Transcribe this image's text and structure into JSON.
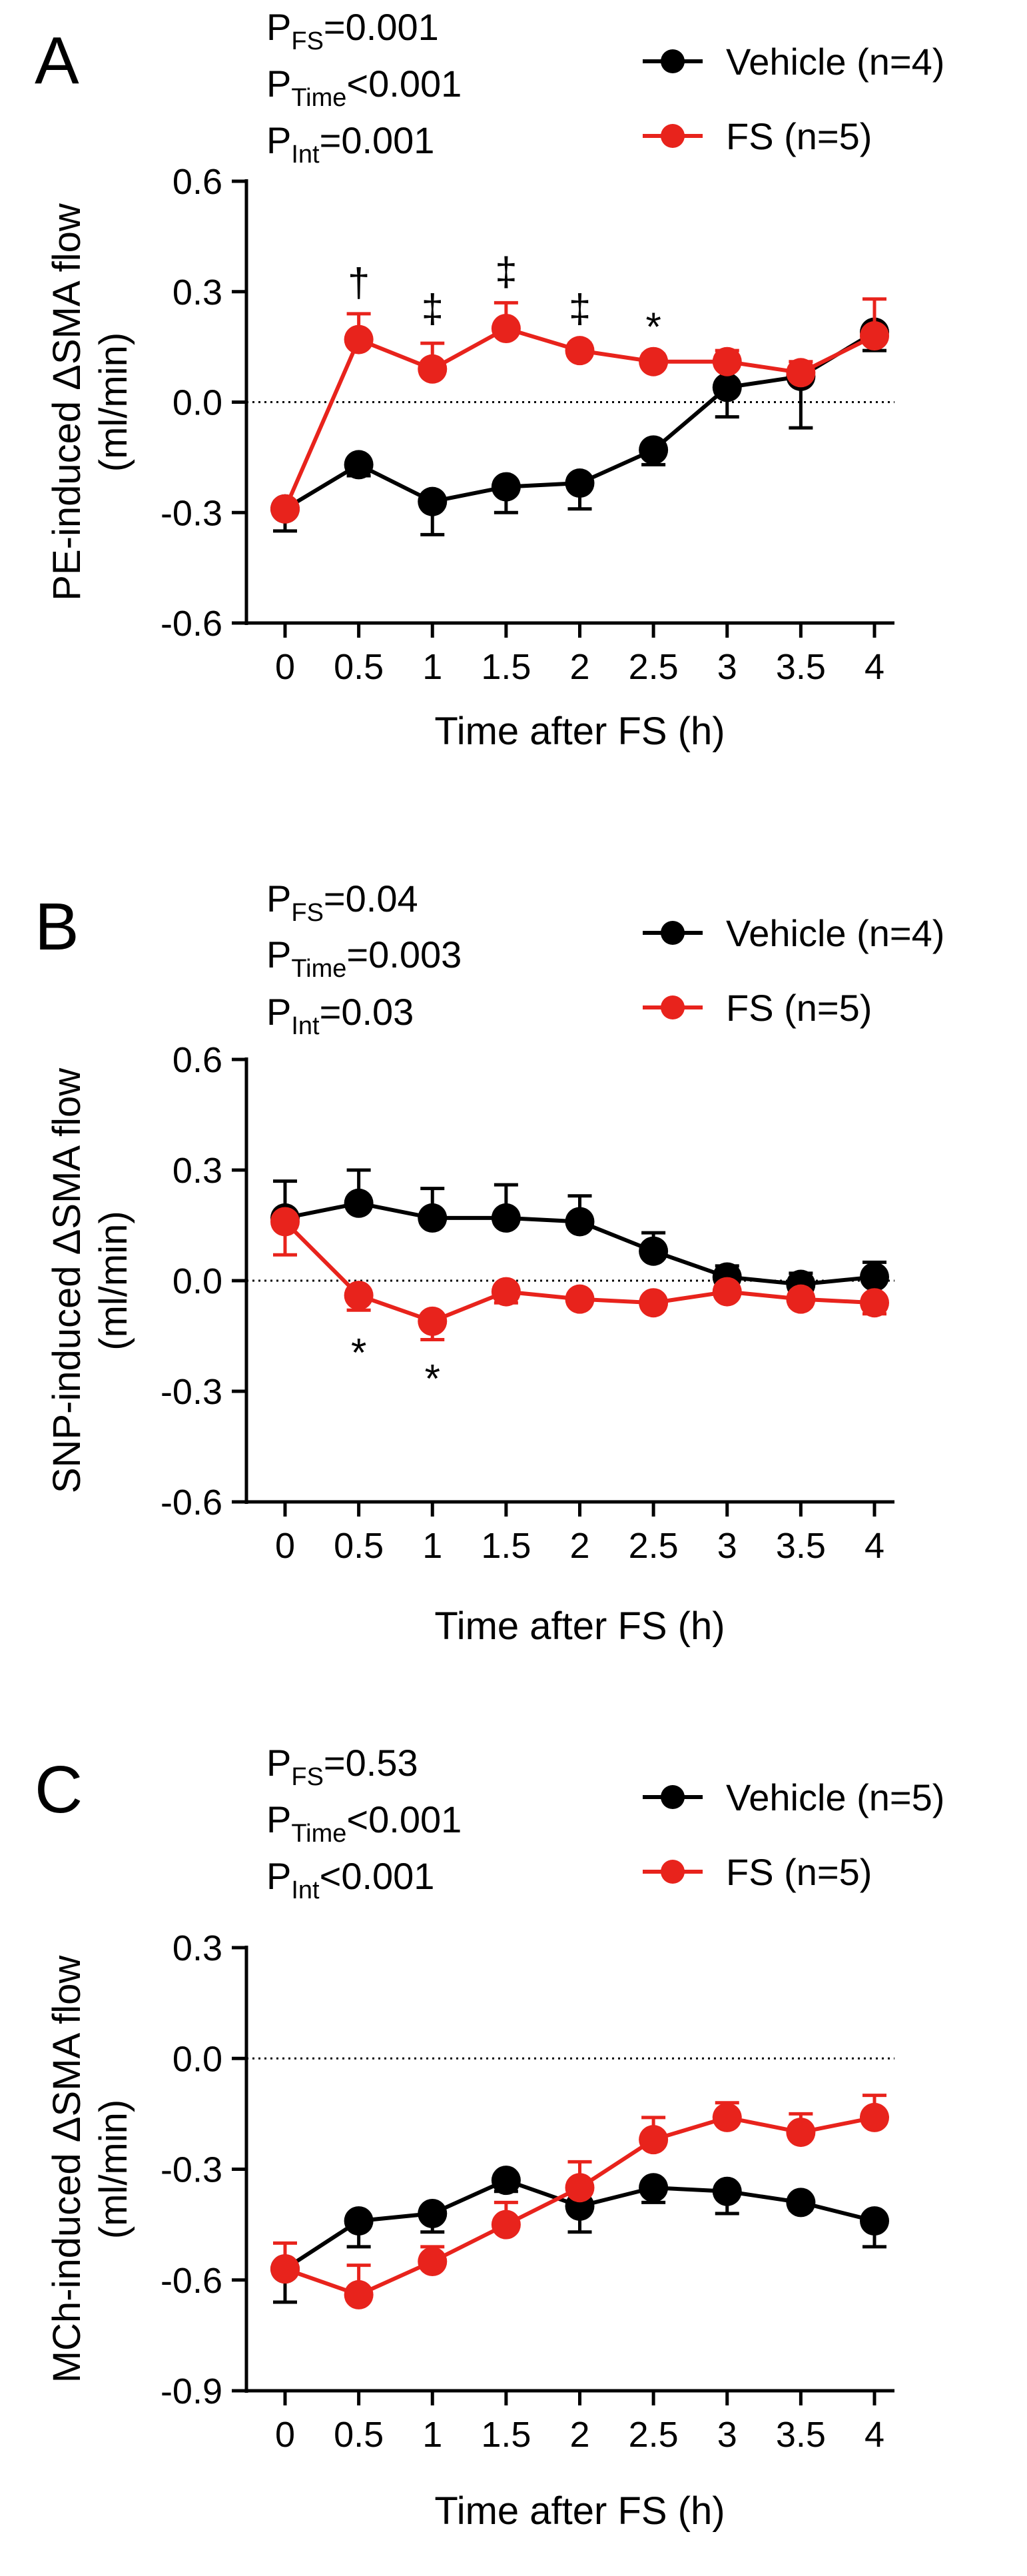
{
  "chart_data": [
    {
      "type": "line",
      "panel_label": "A",
      "stats": [
        {
          "base": "P",
          "sub": "FS",
          "rest": "=0.001"
        },
        {
          "base": "P",
          "sub": "Time",
          "rest": "<0.001"
        },
        {
          "base": "P",
          "sub": "Int",
          "rest": "=0.001"
        }
      ],
      "ylabel_lines": [
        "PE-induced ΔSMA flow",
        "(ml/min)"
      ],
      "xlabel": "Time after FS (h)",
      "x": [
        0,
        0.5,
        1,
        1.5,
        2,
        2.5,
        3,
        3.5,
        4
      ],
      "x_tick_labels": [
        "0",
        "0.5",
        "1",
        "1.5",
        "2",
        "2.5",
        "3",
        "3.5",
        "4"
      ],
      "ylim": [
        -0.6,
        0.6
      ],
      "yticks": [
        -0.6,
        -0.3,
        0.0,
        0.3,
        0.6
      ],
      "y_tick_labels": [
        "-0.6",
        "-0.3",
        "0.0",
        "0.3",
        "0.6"
      ],
      "zero_line": true,
      "legend_position": "top-right",
      "series": [
        {
          "name": "Vehicle (n=4)",
          "color": "#000000",
          "values": [
            -0.29,
            -0.17,
            -0.27,
            -0.23,
            -0.22,
            -0.13,
            0.04,
            0.07,
            0.19
          ],
          "errors": [
            0.06,
            0.03,
            0.09,
            0.07,
            0.07,
            0.04,
            0.08,
            0.14,
            0.05
          ],
          "error_dir": [
            -1,
            -1,
            -1,
            -1,
            -1,
            -1,
            -1,
            -1,
            -1
          ]
        },
        {
          "name": "FS (n=5)",
          "color": "#e8231c",
          "values": [
            -0.29,
            0.17,
            0.09,
            0.2,
            0.14,
            0.11,
            0.11,
            0.08,
            0.18
          ],
          "errors": [
            0.02,
            0.07,
            0.07,
            0.07,
            0.02,
            0.02,
            0.03,
            0.03,
            0.1
          ],
          "error_dir": [
            1,
            1,
            1,
            1,
            1,
            1,
            1,
            1,
            1
          ]
        }
      ],
      "annotations": [
        {
          "x": 0.5,
          "y": 0.32,
          "text": "†"
        },
        {
          "x": 1,
          "y": 0.25,
          "text": "‡"
        },
        {
          "x": 1.5,
          "y": 0.35,
          "text": "‡"
        },
        {
          "x": 2,
          "y": 0.25,
          "text": "‡"
        },
        {
          "x": 2.5,
          "y": 0.2,
          "text": "*"
        }
      ]
    },
    {
      "type": "line",
      "panel_label": "B",
      "stats": [
        {
          "base": "P",
          "sub": "FS",
          "rest": "=0.04"
        },
        {
          "base": "P",
          "sub": "Time",
          "rest": "=0.003"
        },
        {
          "base": "P",
          "sub": "Int",
          "rest": "=0.03"
        }
      ],
      "ylabel_lines": [
        "SNP-induced ΔSMA flow",
        "(ml/min)"
      ],
      "xlabel": "Time after FS (h)",
      "x": [
        0,
        0.5,
        1,
        1.5,
        2,
        2.5,
        3,
        3.5,
        4
      ],
      "x_tick_labels": [
        "0",
        "0.5",
        "1",
        "1.5",
        "2",
        "2.5",
        "3",
        "3.5",
        "4"
      ],
      "ylim": [
        -0.6,
        0.6
      ],
      "yticks": [
        -0.6,
        -0.3,
        0.0,
        0.3,
        0.6
      ],
      "y_tick_labels": [
        "-0.6",
        "-0.3",
        "0.0",
        "0.3",
        "0.6"
      ],
      "zero_line": true,
      "legend_position": "top-right",
      "series": [
        {
          "name": "Vehicle (n=4)",
          "color": "#000000",
          "values": [
            0.17,
            0.21,
            0.17,
            0.17,
            0.16,
            0.08,
            0.01,
            -0.01,
            0.01
          ],
          "errors": [
            0.1,
            0.09,
            0.08,
            0.09,
            0.07,
            0.05,
            0.03,
            0.03,
            0.04
          ],
          "error_dir": [
            1,
            1,
            1,
            1,
            1,
            1,
            1,
            1,
            1
          ]
        },
        {
          "name": "FS (n=5)",
          "color": "#e8231c",
          "values": [
            0.16,
            -0.04,
            -0.11,
            -0.03,
            -0.05,
            -0.06,
            -0.03,
            -0.05,
            -0.06
          ],
          "errors": [
            0.09,
            0.04,
            0.05,
            0.03,
            0.01,
            0.01,
            0.01,
            0.02,
            0.03
          ],
          "error_dir": [
            -1,
            -1,
            -1,
            -1,
            -1,
            -1,
            -1,
            -1,
            -1
          ]
        }
      ],
      "annotations": [
        {
          "x": 0.5,
          "y": -0.2,
          "text": "*"
        },
        {
          "x": 1,
          "y": -0.27,
          "text": "*"
        }
      ]
    },
    {
      "type": "line",
      "panel_label": "C",
      "stats": [
        {
          "base": "P",
          "sub": "FS",
          "rest": "=0.53"
        },
        {
          "base": "P",
          "sub": "Time",
          "rest": "<0.001"
        },
        {
          "base": "P",
          "sub": "Int",
          "rest": "<0.001"
        }
      ],
      "ylabel_lines": [
        "MCh-induced ΔSMA flow",
        "(ml/min)"
      ],
      "xlabel": "Time after FS (h)",
      "x": [
        0,
        0.5,
        1,
        1.5,
        2,
        2.5,
        3,
        3.5,
        4
      ],
      "x_tick_labels": [
        "0",
        "0.5",
        "1",
        "1.5",
        "2",
        "2.5",
        "3",
        "3.5",
        "4"
      ],
      "ylim": [
        -0.9,
        0.3
      ],
      "yticks": [
        -0.9,
        -0.6,
        -0.3,
        0.0,
        0.3
      ],
      "y_tick_labels": [
        "-0.9",
        "-0.6",
        "-0.3",
        "0.0",
        "0.3"
      ],
      "zero_line": true,
      "legend_position": "top-right",
      "series": [
        {
          "name": "Vehicle (n=5)",
          "color": "#000000",
          "values": [
            -0.57,
            -0.44,
            -0.42,
            -0.33,
            -0.4,
            -0.35,
            -0.36,
            -0.39,
            -0.44
          ],
          "errors": [
            0.09,
            0.07,
            0.05,
            0.03,
            0.07,
            0.04,
            0.06,
            0.02,
            0.07
          ],
          "error_dir": [
            -1,
            -1,
            -1,
            -1,
            -1,
            -1,
            -1,
            -1,
            -1
          ]
        },
        {
          "name": "FS (n=5)",
          "color": "#e8231c",
          "values": [
            -0.57,
            -0.64,
            -0.55,
            -0.45,
            -0.35,
            -0.22,
            -0.16,
            -0.2,
            -0.16
          ],
          "errors": [
            0.07,
            0.08,
            0.04,
            0.06,
            0.07,
            0.06,
            0.04,
            0.05,
            0.06
          ],
          "error_dir": [
            1,
            1,
            1,
            1,
            1,
            1,
            1,
            1,
            1
          ]
        }
      ],
      "annotations": []
    }
  ]
}
